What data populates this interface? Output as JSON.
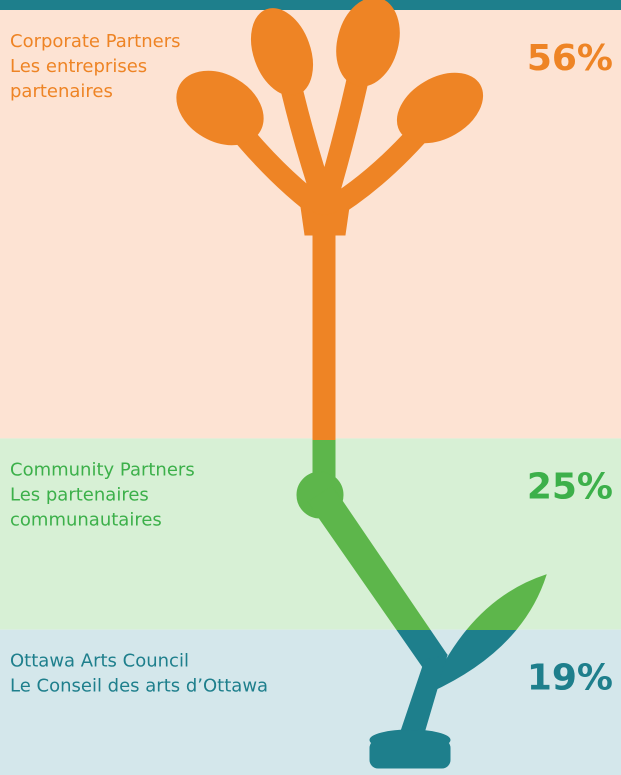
{
  "chart_data": {
    "type": "band",
    "categories": [
      "Corporate Partners",
      "Community Partners",
      "Ottawa Arts Council"
    ],
    "categories_fr": [
      [
        "Les entreprises",
        "partenaires"
      ],
      [
        "Les partenaires",
        "communautaires"
      ],
      [
        "Le Conseil des arts d’Ottawa"
      ]
    ],
    "values": [
      56,
      25,
      19
    ],
    "value_labels": [
      "56%",
      "25%",
      "19%"
    ],
    "colors": [
      "#ee8425",
      "#3cb04a",
      "#1e7f8c"
    ],
    "band_colors": [
      "#fde3d3",
      "#d7f0d5",
      "#d4e7eb"
    ]
  }
}
